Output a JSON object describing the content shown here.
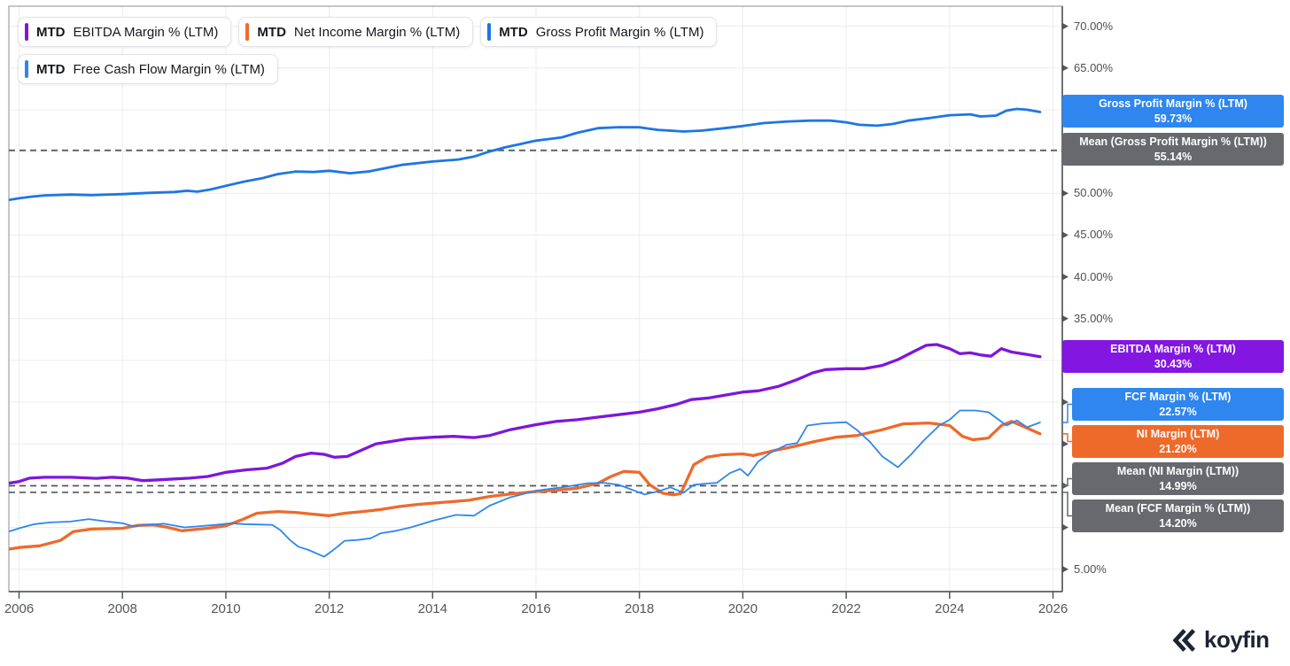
{
  "legend": [
    {
      "tag": "MTD",
      "label": "EBITDA Margin % (LTM)",
      "color": "#7e16db"
    },
    {
      "tag": "MTD",
      "label": "Net Income Margin % (LTM)",
      "color": "#ee6a2b"
    },
    {
      "tag": "MTD",
      "label": "Gross Profit Margin % (LTM)",
      "color": "#1d76e3"
    },
    {
      "tag": "MTD",
      "label": "Free Cash Flow Margin % (LTM)",
      "color": "#2e86ee"
    }
  ],
  "right_labels": [
    {
      "title": "Gross Profit Margin % (LTM)",
      "value": "59.73%",
      "color": "#2e86ee"
    },
    {
      "title": "Mean (Gross Profit Margin % (LTM))",
      "value": "55.14%",
      "color": "#67696f"
    },
    {
      "title": "EBITDA Margin % (LTM)",
      "value": "30.43%",
      "color": "#8416e2"
    },
    {
      "title": "FCF Margin % (LTM)",
      "value": "22.57%",
      "color": "#2e86ee"
    },
    {
      "title": "NI Margin (LTM)",
      "value": "21.20%",
      "color": "#ee6a2b"
    },
    {
      "title": "Mean (NI Margin (LTM))",
      "value": "14.99%",
      "color": "#67696f"
    },
    {
      "title": "Mean (FCF Margin % (LTM))",
      "value": "14.20%",
      "color": "#67696f"
    }
  ],
  "logo": {
    "brand": "koyfin"
  },
  "chart_data": {
    "type": "line",
    "title": "",
    "xlabel": "",
    "ylabel": "",
    "xlim": [
      2005.8,
      2026.2
    ],
    "ylim": [
      2.3,
      72.4
    ],
    "grid": true,
    "legend_position": "top-left",
    "x_ticks": [
      "2006",
      "2008",
      "2010",
      "2012",
      "2014",
      "2016",
      "2018",
      "2020",
      "2022",
      "2024",
      "2026"
    ],
    "y_ticks": [
      "70.00%",
      "65.00%",
      "60.00%",
      "55.00%",
      "50.00%",
      "45.00%",
      "40.00%",
      "35.00%",
      "30.00%",
      "25.00%",
      "20.00%",
      "15.00%",
      "10.00%",
      "5.00%"
    ],
    "mean_lines": [
      {
        "label": "Mean (Gross Profit Margin % (LTM))",
        "value": 55.14
      },
      {
        "label": "Mean (NI Margin (LTM))",
        "value": 14.99
      },
      {
        "label": "Mean (FCF Margin % (LTM))",
        "value": 14.2
      }
    ],
    "series": [
      {
        "id": "gross-profit",
        "name": "Gross Profit Margin % (LTM)",
        "color": "#1d76e3",
        "width": 2.8,
        "last_value": 59.73,
        "points": [
          [
            2005.8,
            49.2
          ],
          [
            2006,
            49.4
          ],
          [
            2006.25,
            49.6
          ],
          [
            2006.5,
            49.75
          ],
          [
            2007,
            49.85
          ],
          [
            2007.4,
            49.78
          ],
          [
            2008,
            49.9
          ],
          [
            2008.5,
            50.05
          ],
          [
            2009,
            50.15
          ],
          [
            2009.25,
            50.3
          ],
          [
            2009.45,
            50.2
          ],
          [
            2009.7,
            50.45
          ],
          [
            2010,
            50.9
          ],
          [
            2010.35,
            51.4
          ],
          [
            2010.7,
            51.8
          ],
          [
            2011,
            52.3
          ],
          [
            2011.35,
            52.6
          ],
          [
            2011.7,
            52.55
          ],
          [
            2012,
            52.7
          ],
          [
            2012.4,
            52.4
          ],
          [
            2012.75,
            52.6
          ],
          [
            2013,
            52.9
          ],
          [
            2013.4,
            53.4
          ],
          [
            2014,
            53.8
          ],
          [
            2014.5,
            54.05
          ],
          [
            2014.8,
            54.4
          ],
          [
            2015.1,
            55.0
          ],
          [
            2015.4,
            55.5
          ],
          [
            2015.7,
            55.9
          ],
          [
            2016,
            56.3
          ],
          [
            2016.2,
            56.45
          ],
          [
            2016.5,
            56.7
          ],
          [
            2016.8,
            57.25
          ],
          [
            2017.2,
            57.8
          ],
          [
            2017.6,
            57.92
          ],
          [
            2018,
            57.9
          ],
          [
            2018.35,
            57.6
          ],
          [
            2018.85,
            57.4
          ],
          [
            2019.2,
            57.5
          ],
          [
            2019.65,
            57.8
          ],
          [
            2020,
            58.05
          ],
          [
            2020.4,
            58.4
          ],
          [
            2020.9,
            58.6
          ],
          [
            2021.3,
            58.7
          ],
          [
            2021.7,
            58.7
          ],
          [
            2022,
            58.5
          ],
          [
            2022.25,
            58.2
          ],
          [
            2022.6,
            58.1
          ],
          [
            2022.9,
            58.3
          ],
          [
            2023.2,
            58.7
          ],
          [
            2023.6,
            59.0
          ],
          [
            2024,
            59.35
          ],
          [
            2024.4,
            59.45
          ],
          [
            2024.6,
            59.2
          ],
          [
            2024.9,
            59.3
          ],
          [
            2025.1,
            59.9
          ],
          [
            2025.3,
            60.1
          ],
          [
            2025.5,
            60.0
          ],
          [
            2025.75,
            59.73
          ]
        ]
      },
      {
        "id": "ebitda",
        "name": "EBITDA Margin % (LTM)",
        "color": "#7e16db",
        "width": 3.3,
        "last_value": 30.43,
        "points": [
          [
            2005.8,
            15.3
          ],
          [
            2006,
            15.5
          ],
          [
            2006.2,
            15.9
          ],
          [
            2006.5,
            16.0
          ],
          [
            2007,
            16.0
          ],
          [
            2007.5,
            15.88
          ],
          [
            2007.8,
            16.0
          ],
          [
            2008.1,
            15.9
          ],
          [
            2008.4,
            15.6
          ],
          [
            2008.7,
            15.7
          ],
          [
            2009,
            15.8
          ],
          [
            2009.3,
            15.9
          ],
          [
            2009.65,
            16.1
          ],
          [
            2010,
            16.6
          ],
          [
            2010.4,
            16.9
          ],
          [
            2010.8,
            17.1
          ],
          [
            2011.1,
            17.7
          ],
          [
            2011.35,
            18.5
          ],
          [
            2011.65,
            18.9
          ],
          [
            2011.9,
            18.75
          ],
          [
            2012.1,
            18.4
          ],
          [
            2012.35,
            18.5
          ],
          [
            2012.9,
            20.0
          ],
          [
            2013.5,
            20.6
          ],
          [
            2014,
            20.8
          ],
          [
            2014.4,
            20.9
          ],
          [
            2014.8,
            20.75
          ],
          [
            2015.1,
            21.0
          ],
          [
            2015.5,
            21.7
          ],
          [
            2016,
            22.3
          ],
          [
            2016.4,
            22.7
          ],
          [
            2016.8,
            22.9
          ],
          [
            2017.2,
            23.2
          ],
          [
            2017.6,
            23.5
          ],
          [
            2018,
            23.8
          ],
          [
            2018.35,
            24.2
          ],
          [
            2018.7,
            24.7
          ],
          [
            2019,
            25.3
          ],
          [
            2019.35,
            25.5
          ],
          [
            2020,
            26.2
          ],
          [
            2020.3,
            26.35
          ],
          [
            2020.7,
            26.9
          ],
          [
            2021.05,
            27.7
          ],
          [
            2021.35,
            28.5
          ],
          [
            2021.6,
            28.9
          ],
          [
            2022,
            29.0
          ],
          [
            2022.35,
            29.0
          ],
          [
            2022.7,
            29.4
          ],
          [
            2023,
            30.1
          ],
          [
            2023.35,
            31.2
          ],
          [
            2023.55,
            31.8
          ],
          [
            2023.75,
            31.9
          ],
          [
            2024,
            31.4
          ],
          [
            2024.2,
            30.8
          ],
          [
            2024.4,
            30.9
          ],
          [
            2024.6,
            30.65
          ],
          [
            2024.8,
            30.5
          ],
          [
            2025,
            31.4
          ],
          [
            2025.2,
            31.0
          ],
          [
            2025.5,
            30.7
          ],
          [
            2025.75,
            30.43
          ]
        ]
      },
      {
        "id": "net-income",
        "name": "Net Income Margin % (LTM)",
        "color": "#ee6a2b",
        "width": 3.3,
        "last_value": 21.2,
        "points": [
          [
            2005.8,
            7.4
          ],
          [
            2006,
            7.6
          ],
          [
            2006.4,
            7.8
          ],
          [
            2006.8,
            8.45
          ],
          [
            2007.05,
            9.5
          ],
          [
            2007.4,
            9.8
          ],
          [
            2008,
            9.9
          ],
          [
            2008.3,
            10.25
          ],
          [
            2008.6,
            10.3
          ],
          [
            2008.85,
            10.05
          ],
          [
            2009.15,
            9.6
          ],
          [
            2009.4,
            9.75
          ],
          [
            2009.65,
            9.9
          ],
          [
            2010,
            10.2
          ],
          [
            2010.3,
            10.9
          ],
          [
            2010.6,
            11.7
          ],
          [
            2011,
            11.9
          ],
          [
            2011.35,
            11.8
          ],
          [
            2011.65,
            11.6
          ],
          [
            2012,
            11.4
          ],
          [
            2012.3,
            11.7
          ],
          [
            2012.65,
            11.9
          ],
          [
            2013,
            12.15
          ],
          [
            2013.35,
            12.5
          ],
          [
            2013.7,
            12.75
          ],
          [
            2014,
            12.9
          ],
          [
            2014.4,
            13.1
          ],
          [
            2014.7,
            13.25
          ],
          [
            2015.1,
            13.7
          ],
          [
            2015.5,
            14.0
          ],
          [
            2016,
            14.3
          ],
          [
            2016.4,
            14.45
          ],
          [
            2016.8,
            14.7
          ],
          [
            2017.2,
            15.3
          ],
          [
            2017.45,
            16.1
          ],
          [
            2017.7,
            16.7
          ],
          [
            2018,
            16.6
          ],
          [
            2018.2,
            15.1
          ],
          [
            2018.45,
            14.1
          ],
          [
            2018.65,
            13.9
          ],
          [
            2018.8,
            14.05
          ],
          [
            2019.05,
            17.5
          ],
          [
            2019.3,
            18.4
          ],
          [
            2019.6,
            18.7
          ],
          [
            2020,
            18.8
          ],
          [
            2020.2,
            18.6
          ],
          [
            2020.6,
            19.2
          ],
          [
            2021,
            19.7
          ],
          [
            2021.4,
            20.3
          ],
          [
            2021.8,
            20.8
          ],
          [
            2022.2,
            21.0
          ],
          [
            2022.7,
            21.7
          ],
          [
            2023.1,
            22.4
          ],
          [
            2023.6,
            22.5
          ],
          [
            2024,
            22.2
          ],
          [
            2024.25,
            20.9
          ],
          [
            2024.45,
            20.5
          ],
          [
            2024.75,
            20.7
          ],
          [
            2025,
            22.2
          ],
          [
            2025.2,
            22.7
          ],
          [
            2025.5,
            21.9
          ],
          [
            2025.75,
            21.2
          ]
        ]
      },
      {
        "id": "fcf",
        "name": "Free Cash Flow Margin % (LTM)",
        "color": "#2e86ee",
        "width": 1.8,
        "last_value": 22.57,
        "points": [
          [
            2005.8,
            9.5
          ],
          [
            2006,
            9.9
          ],
          [
            2006.3,
            10.4
          ],
          [
            2006.6,
            10.6
          ],
          [
            2007,
            10.7
          ],
          [
            2007.35,
            11.0
          ],
          [
            2007.7,
            10.7
          ],
          [
            2008,
            10.5
          ],
          [
            2008.2,
            10.15
          ],
          [
            2008.5,
            10.3
          ],
          [
            2008.8,
            10.45
          ],
          [
            2009.2,
            10.0
          ],
          [
            2009.5,
            10.15
          ],
          [
            2009.8,
            10.3
          ],
          [
            2010.1,
            10.5
          ],
          [
            2010.35,
            10.4
          ],
          [
            2010.9,
            10.3
          ],
          [
            2011.05,
            9.7
          ],
          [
            2011.25,
            8.45
          ],
          [
            2011.4,
            7.7
          ],
          [
            2011.6,
            7.3
          ],
          [
            2011.9,
            6.5
          ],
          [
            2012.1,
            7.4
          ],
          [
            2012.3,
            8.4
          ],
          [
            2012.55,
            8.5
          ],
          [
            2012.8,
            8.7
          ],
          [
            2013,
            9.3
          ],
          [
            2013.3,
            9.6
          ],
          [
            2013.6,
            10.05
          ],
          [
            2014,
            10.8
          ],
          [
            2014.45,
            11.5
          ],
          [
            2014.8,
            11.4
          ],
          [
            2015.1,
            12.6
          ],
          [
            2015.5,
            13.6
          ],
          [
            2016,
            14.4
          ],
          [
            2016.5,
            14.8
          ],
          [
            2017,
            15.3
          ],
          [
            2017.3,
            15.35
          ],
          [
            2017.6,
            15.1
          ],
          [
            2018.1,
            13.95
          ],
          [
            2018.35,
            14.3
          ],
          [
            2018.6,
            14.8
          ],
          [
            2018.85,
            14.15
          ],
          [
            2019.05,
            15.1
          ],
          [
            2019.3,
            15.25
          ],
          [
            2019.5,
            15.35
          ],
          [
            2019.75,
            16.5
          ],
          [
            2019.95,
            17.0
          ],
          [
            2020.1,
            16.2
          ],
          [
            2020.3,
            17.9
          ],
          [
            2020.55,
            19.0
          ],
          [
            2020.85,
            19.9
          ],
          [
            2021.05,
            20.1
          ],
          [
            2021.25,
            22.2
          ],
          [
            2021.55,
            22.45
          ],
          [
            2022,
            22.6
          ],
          [
            2022.2,
            21.7
          ],
          [
            2022.45,
            20.3
          ],
          [
            2022.7,
            18.5
          ],
          [
            2023,
            17.2
          ],
          [
            2023.25,
            18.7
          ],
          [
            2023.5,
            20.4
          ],
          [
            2023.8,
            22.2
          ],
          [
            2024,
            22.9
          ],
          [
            2024.2,
            24.0
          ],
          [
            2024.5,
            24.0
          ],
          [
            2024.75,
            23.8
          ],
          [
            2024.95,
            22.9
          ],
          [
            2025.1,
            22.2
          ],
          [
            2025.3,
            22.8
          ],
          [
            2025.5,
            22.0
          ],
          [
            2025.75,
            22.57
          ]
        ]
      }
    ]
  }
}
